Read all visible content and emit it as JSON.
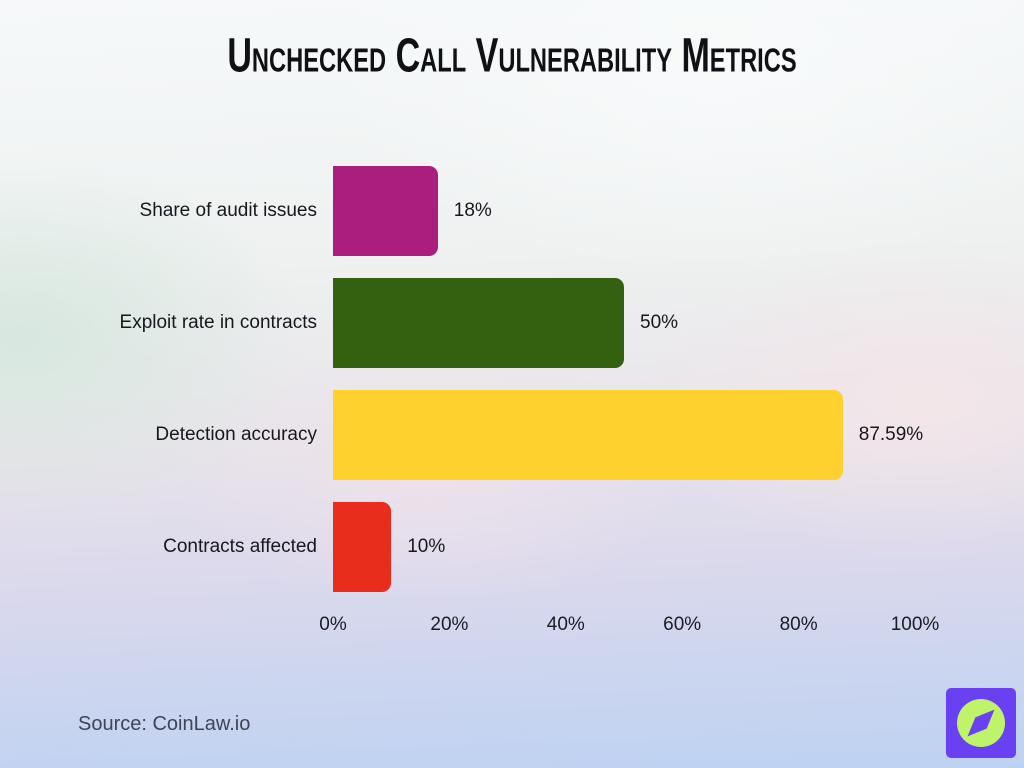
{
  "title": "Unchecked Call Vulnerability Metrics",
  "source": "Source: CoinLaw.io",
  "logo": {
    "icon": "compass-needle-icon",
    "background_color": "#6A41F2",
    "circle_color": "#BFF46A"
  },
  "chart_data": {
    "type": "bar",
    "orientation": "horizontal",
    "title": "Unchecked Call Vulnerability Metrics",
    "categories": [
      "Share of audit issues",
      "Exploit rate in contracts",
      "Detection accuracy",
      "Contracts affected"
    ],
    "values": [
      18,
      50,
      87.59,
      10
    ],
    "value_labels": [
      "18%",
      "50%",
      "87.59%",
      "10%"
    ],
    "bar_colors": [
      "#AC1E7E",
      "#33610F",
      "#FFD12E",
      "#E92D1D"
    ],
    "xlabel": "",
    "ylabel": "",
    "xlim": [
      0,
      100
    ],
    "x_ticks": [
      "0%",
      "20%",
      "40%",
      "60%",
      "80%",
      "100%"
    ],
    "x_tick_values": [
      0,
      20,
      40,
      60,
      80,
      100
    ],
    "grid": false,
    "legend": false,
    "text_color": "#16181d"
  }
}
